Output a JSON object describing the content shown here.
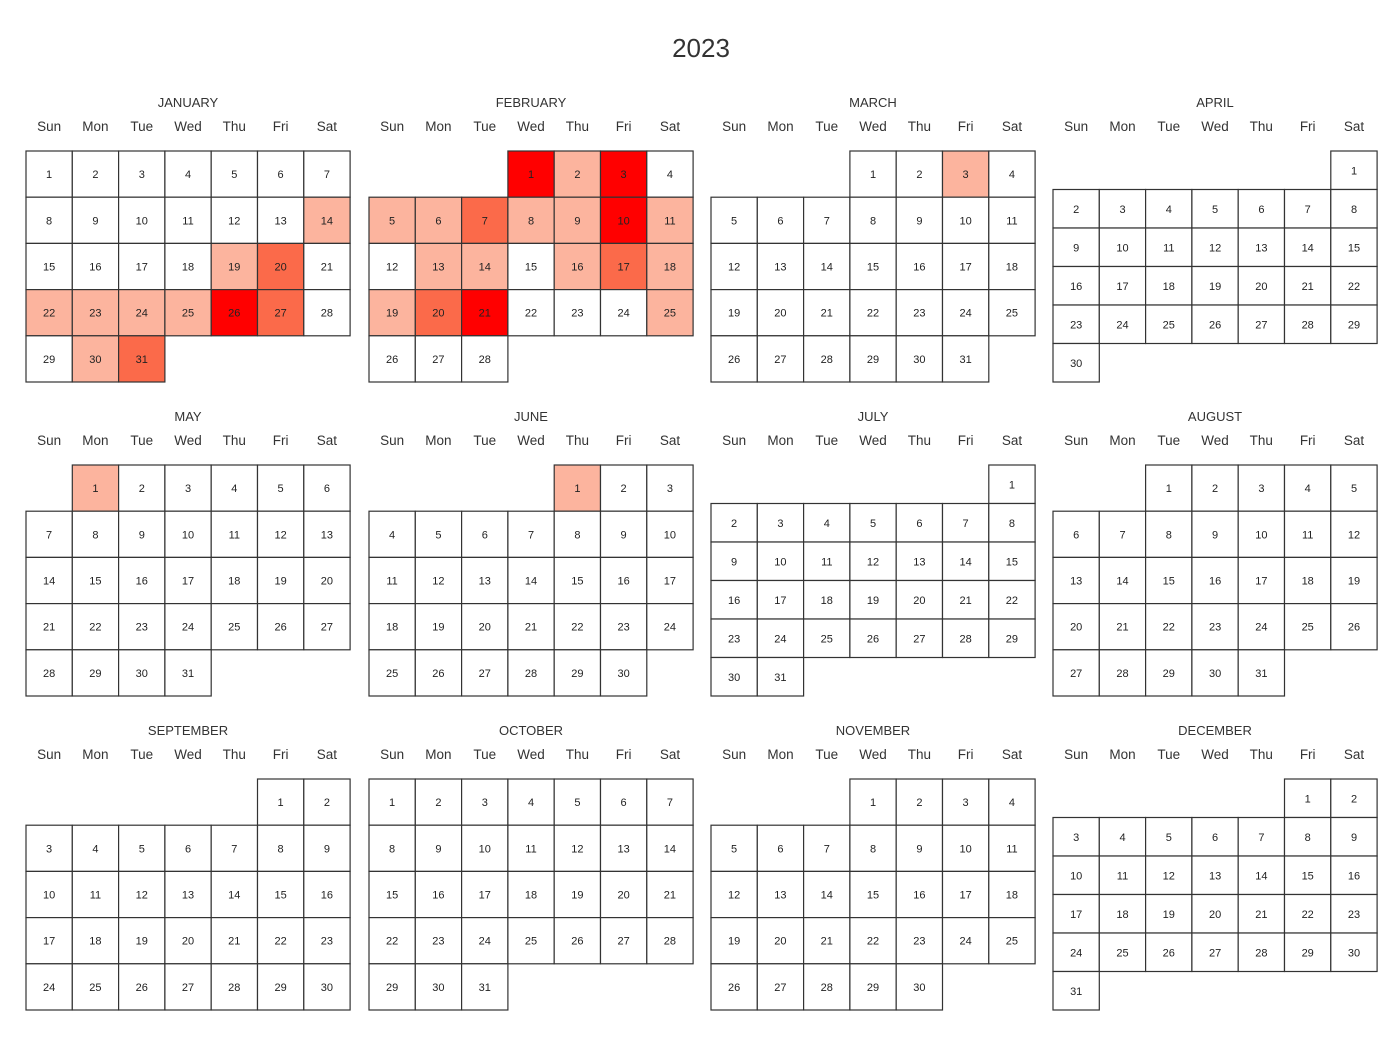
{
  "chart_data": {
    "type": "heatmap",
    "title": "2023",
    "year": 2023,
    "weekdays": [
      "Sun",
      "Mon",
      "Tue",
      "Wed",
      "Thu",
      "Fri",
      "Sat"
    ],
    "months": [
      "JANUARY",
      "FEBRUARY",
      "MARCH",
      "APRIL",
      "MAY",
      "JUNE",
      "JULY",
      "AUGUST",
      "SEPTEMBER",
      "OCTOBER",
      "NOVEMBER",
      "DECEMBER"
    ],
    "color_scale": {
      "empty": "#ffffff",
      "low": "#fcb49e",
      "mid": "#fb6a4a",
      "high": "#ff0000"
    },
    "values": [
      {
        "date": "2023-01-14",
        "value": 1
      },
      {
        "date": "2023-01-19",
        "value": 1
      },
      {
        "date": "2023-01-20",
        "value": 2
      },
      {
        "date": "2023-01-22",
        "value": 1
      },
      {
        "date": "2023-01-23",
        "value": 1
      },
      {
        "date": "2023-01-24",
        "value": 1
      },
      {
        "date": "2023-01-25",
        "value": 1
      },
      {
        "date": "2023-01-26",
        "value": 3
      },
      {
        "date": "2023-01-27",
        "value": 2
      },
      {
        "date": "2023-01-30",
        "value": 1
      },
      {
        "date": "2023-01-31",
        "value": 2
      },
      {
        "date": "2023-02-01",
        "value": 3
      },
      {
        "date": "2023-02-02",
        "value": 1
      },
      {
        "date": "2023-02-03",
        "value": 3
      },
      {
        "date": "2023-02-05",
        "value": 1
      },
      {
        "date": "2023-02-06",
        "value": 1
      },
      {
        "date": "2023-02-07",
        "value": 2
      },
      {
        "date": "2023-02-08",
        "value": 1
      },
      {
        "date": "2023-02-09",
        "value": 1
      },
      {
        "date": "2023-02-10",
        "value": 3
      },
      {
        "date": "2023-02-11",
        "value": 1
      },
      {
        "date": "2023-02-13",
        "value": 1
      },
      {
        "date": "2023-02-14",
        "value": 1
      },
      {
        "date": "2023-02-16",
        "value": 1
      },
      {
        "date": "2023-02-17",
        "value": 2
      },
      {
        "date": "2023-02-18",
        "value": 1
      },
      {
        "date": "2023-02-19",
        "value": 1
      },
      {
        "date": "2023-02-20",
        "value": 2
      },
      {
        "date": "2023-02-21",
        "value": 3
      },
      {
        "date": "2023-02-25",
        "value": 1
      },
      {
        "date": "2023-03-03",
        "value": 1
      },
      {
        "date": "2023-05-01",
        "value": 1
      },
      {
        "date": "2023-06-01",
        "value": 1
      }
    ]
  }
}
